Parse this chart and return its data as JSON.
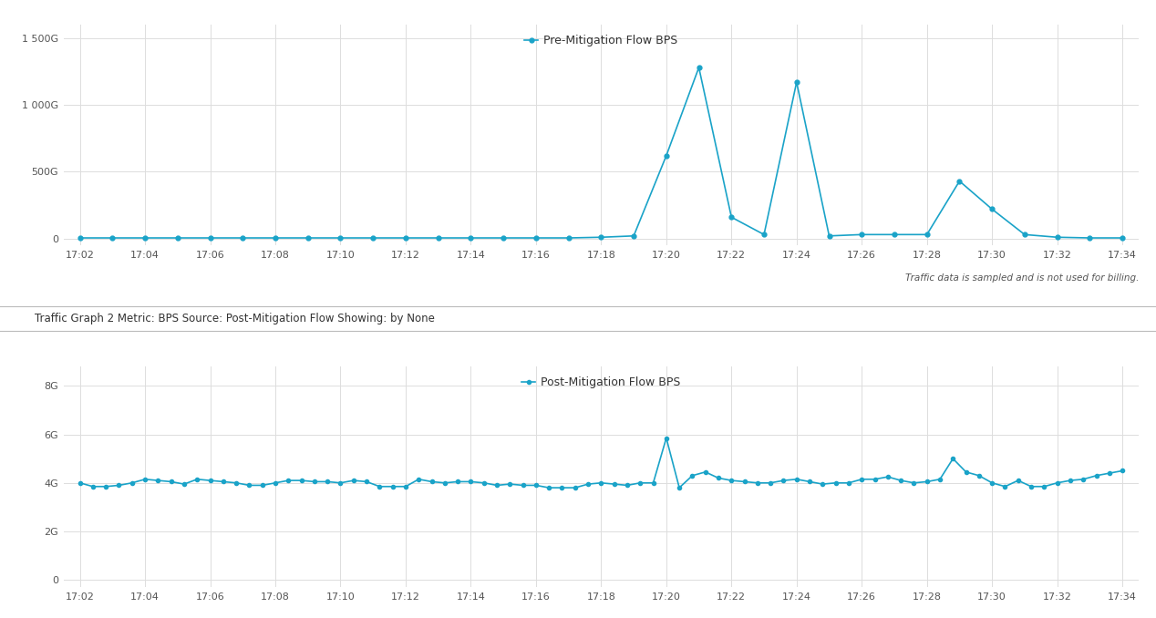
{
  "time_labels": [
    "17:02",
    "17:04",
    "17:06",
    "17:08",
    "17:10",
    "17:12",
    "17:14",
    "17:16",
    "17:18",
    "17:20",
    "17:22",
    "17:24",
    "17:26",
    "17:28",
    "17:30",
    "17:32",
    "17:34"
  ],
  "pre_title": "Pre-Mitigation Flow BPS",
  "post_title": "Post-Mitigation Flow BPS",
  "subtitle2": "Traffic Graph 2 Metric: BPS Source: Post-Mitigation Flow Showing: by None",
  "footnote": "Traffic data is sampled and is not used for billing.",
  "line_color": "#1aa3c8",
  "marker_color": "#1aa3c8",
  "pre_yticks": [
    0,
    500,
    1000,
    1500
  ],
  "pre_ylabels": [
    "0",
    "500G",
    "1 000G",
    "1 500G"
  ],
  "pre_ylim": [
    -50,
    1600
  ],
  "post_yticks": [
    0,
    2,
    4,
    6,
    8
  ],
  "post_ylabels": [
    "0",
    "2G",
    "4G",
    "6G",
    "8G"
  ],
  "post_ylim": [
    -0.3,
    8.8
  ],
  "pre_y": [
    5,
    5,
    5,
    5,
    5,
    5,
    5,
    5,
    5,
    5,
    5,
    5,
    5,
    5,
    5,
    5,
    10,
    20,
    620,
    1280,
    160,
    30,
    1170,
    20,
    30,
    30,
    30,
    430,
    220,
    30,
    10,
    5,
    5
  ],
  "post_y": [
    4.0,
    3.85,
    3.85,
    3.9,
    4.0,
    4.15,
    4.1,
    4.05,
    3.95,
    4.15,
    4.1,
    4.05,
    4.0,
    3.9,
    3.9,
    4.0,
    4.1,
    4.1,
    4.05,
    4.05,
    4.0,
    4.1,
    4.05,
    3.85,
    3.85,
    3.85,
    4.15,
    4.05,
    4.0,
    4.05,
    4.05,
    4.0,
    3.9,
    3.95,
    3.9,
    3.9,
    3.8,
    3.8,
    3.8,
    3.95,
    4.0,
    3.95,
    3.9,
    4.0,
    4.0,
    5.85,
    3.8,
    4.3,
    4.45,
    4.2,
    4.1,
    4.05,
    4.0,
    4.0,
    4.1,
    4.15,
    4.05,
    3.95,
    4.0,
    4.0,
    4.15,
    4.15,
    4.25,
    4.1,
    4.0,
    4.05,
    4.15,
    5.0,
    4.45,
    4.3,
    4.0,
    3.85,
    4.1,
    3.85,
    3.85,
    4.0,
    4.1,
    4.15,
    4.3,
    4.4,
    4.5
  ],
  "bg_color": "#ffffff",
  "grid_color": "#dddddd",
  "text_color": "#333333",
  "axis_label_color": "#555555"
}
